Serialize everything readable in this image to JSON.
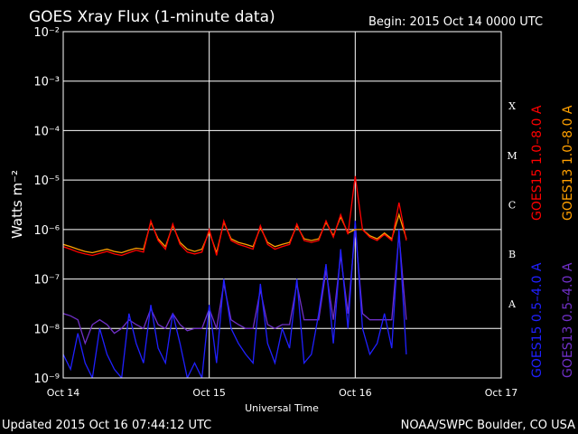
{
  "chart_data": {
    "type": "line",
    "title": "GOES Xray Flux (1-minute data)",
    "subtitle": "Begin:  2015 Oct 14 0000 UTC",
    "x_label": "Universal Time",
    "y_label": "Watts m⁻²",
    "footer_left": "Updated 2015 Oct 16 07:44:12 UTC",
    "footer_right": "NOAA/SWPC Boulder, CO USA",
    "class_labels": [
      "X",
      "M",
      "C",
      "B",
      "A"
    ],
    "log_scale": true,
    "grid": true,
    "xlim": [
      0,
      3
    ],
    "xticks": [
      {
        "value": 0,
        "label": "Oct 14"
      },
      {
        "value": 1,
        "label": "Oct 15"
      },
      {
        "value": 2,
        "label": "Oct 16"
      },
      {
        "value": 3,
        "label": "Oct 17"
      }
    ],
    "ylim": [
      1e-09,
      0.01
    ],
    "yticks": [
      {
        "value": 1e-09,
        "label": "10⁻⁹"
      },
      {
        "value": 1e-08,
        "label": "10⁻⁸"
      },
      {
        "value": 1e-07,
        "label": "10⁻⁷"
      },
      {
        "value": 1e-06,
        "label": "10⁻⁶"
      },
      {
        "value": 1e-05,
        "label": "10⁻⁵"
      },
      {
        "value": 0.0001,
        "label": "10⁻⁴"
      },
      {
        "value": 0.001,
        "label": "10⁻³"
      },
      {
        "value": 0.01,
        "label": "10⁻²"
      }
    ],
    "x": [
      0,
      0.05,
      0.1,
      0.15,
      0.2,
      0.25,
      0.3,
      0.35,
      0.4,
      0.45,
      0.5,
      0.55,
      0.6,
      0.65,
      0.7,
      0.75,
      0.8,
      0.85,
      0.9,
      0.95,
      1,
      1.05,
      1.1,
      1.15,
      1.2,
      1.25,
      1.3,
      1.35,
      1.4,
      1.45,
      1.5,
      1.55,
      1.6,
      1.65,
      1.7,
      1.75,
      1.8,
      1.85,
      1.9,
      1.95,
      2,
      2.05,
      2.1,
      2.15,
      2.2,
      2.25,
      2.3,
      2.35
    ],
    "series": [
      {
        "name": "GOES13 0.5–4.0 A",
        "color": "#7030c8",
        "legend_column": 1,
        "legend_group": 1,
        "values": [
          2e-08,
          1.8e-08,
          1.5e-08,
          5e-09,
          1.2e-08,
          1.5e-08,
          1.2e-08,
          8e-09,
          1e-08,
          1.5e-08,
          1.2e-08,
          1e-08,
          2.5e-08,
          1.2e-08,
          1e-08,
          2e-08,
          1.2e-08,
          9e-09,
          1e-08,
          1e-08,
          2.5e-08,
          1e-08,
          8e-08,
          1.5e-08,
          1.2e-08,
          1e-08,
          1e-08,
          6e-08,
          1.2e-08,
          1e-08,
          1.2e-08,
          1.2e-08,
          8e-08,
          1.5e-08,
          1.5e-08,
          1.5e-08,
          1.5e-07,
          1.5e-08,
          3e-07,
          2e-08,
          1e-06,
          2e-08,
          1.5e-08,
          1.5e-08,
          1.5e-08,
          1.5e-08,
          8e-07,
          1.5e-08
        ]
      },
      {
        "name": "GOES15 0.5–4.0 A",
        "color": "#2020ff",
        "legend_column": 0,
        "legend_group": 1,
        "values": [
          3e-09,
          1.5e-09,
          8e-09,
          2e-09,
          1e-09,
          1e-08,
          3e-09,
          1.5e-09,
          1e-09,
          2e-08,
          5e-09,
          2e-09,
          3e-08,
          4e-09,
          2e-09,
          2e-08,
          5e-09,
          1e-09,
          2e-09,
          1e-09,
          3e-08,
          2e-09,
          1e-07,
          1e-08,
          5e-09,
          3e-09,
          2e-09,
          8e-08,
          5e-09,
          2e-09,
          1e-08,
          4e-09,
          1e-07,
          2e-09,
          3e-09,
          2e-08,
          2e-07,
          5e-09,
          4e-07,
          1e-08,
          1.5e-06,
          1e-08,
          3e-09,
          5e-09,
          2e-08,
          4e-09,
          1e-06,
          3e-09
        ]
      },
      {
        "name": "GOES13 1.0–8.0 A",
        "color": "#ffa000",
        "legend_column": 1,
        "legend_group": 0,
        "values": [
          5e-07,
          4.5e-07,
          4e-07,
          3.6e-07,
          3.4e-07,
          3.7e-07,
          4e-07,
          3.6e-07,
          3.4e-07,
          3.8e-07,
          4.2e-07,
          4e-07,
          1.4e-06,
          6.5e-07,
          4.5e-07,
          1.2e-06,
          5.5e-07,
          4e-07,
          3.6e-07,
          4e-07,
          9e-07,
          3.4e-07,
          1.4e-06,
          6.5e-07,
          5.5e-07,
          5e-07,
          4.5e-07,
          1.1e-06,
          5.5e-07,
          4.5e-07,
          5e-07,
          5.5e-07,
          1.2e-06,
          6.5e-07,
          6e-07,
          6.5e-07,
          1.4e-06,
          7.5e-07,
          1.8e-06,
          8.5e-07,
          1e-06,
          1e-06,
          7.5e-07,
          6.5e-07,
          8.5e-07,
          6.5e-07,
          2e-06,
          6.5e-07
        ]
      },
      {
        "name": "GOES15 1.0–8.0 A",
        "color": "#ff0000",
        "legend_column": 0,
        "legend_group": 0,
        "values": [
          4.5e-07,
          4e-07,
          3.5e-07,
          3.2e-07,
          3e-07,
          3.3e-07,
          3.6e-07,
          3.2e-07,
          3e-07,
          3.4e-07,
          3.8e-07,
          3.5e-07,
          1.5e-06,
          6e-07,
          4e-07,
          1.3e-06,
          5e-07,
          3.5e-07,
          3.2e-07,
          3.5e-07,
          1e-06,
          3e-07,
          1.5e-06,
          6e-07,
          5e-07,
          4.5e-07,
          4e-07,
          1.2e-06,
          5e-07,
          4e-07,
          4.5e-07,
          5e-07,
          1.3e-06,
          6e-07,
          5.5e-07,
          6e-07,
          1.5e-06,
          7e-07,
          2e-06,
          8e-07,
          1.2e-05,
          1e-06,
          7e-07,
          6e-07,
          8e-07,
          6e-07,
          3.5e-06,
          6e-07
        ]
      }
    ]
  }
}
